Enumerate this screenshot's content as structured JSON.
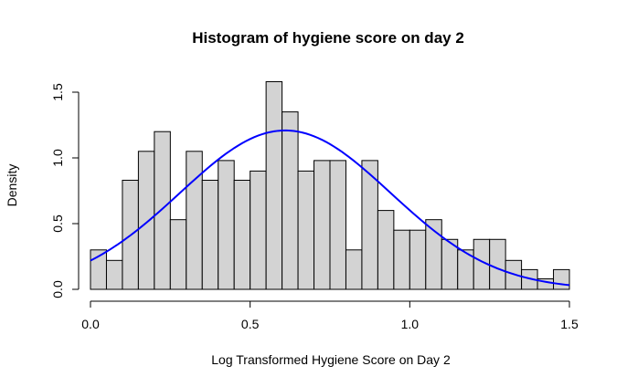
{
  "chart_data": {
    "type": "bar",
    "title": "Histogram of hygiene score on day 2",
    "xlabel": "Log Transformed Hygiene Score on Day 2",
    "ylabel": "Density",
    "xlim": [
      0,
      1.5
    ],
    "ylim": [
      0,
      1.6
    ],
    "bin_width": 0.05,
    "bin_edges": [
      0.0,
      0.05,
      0.1,
      0.15,
      0.2,
      0.25,
      0.3,
      0.35,
      0.4,
      0.45,
      0.5,
      0.55,
      0.6,
      0.65,
      0.7,
      0.75,
      0.8,
      0.85,
      0.9,
      0.95,
      1.0,
      1.05,
      1.1,
      1.15,
      1.2,
      1.25,
      1.3,
      1.35,
      1.4,
      1.45,
      1.5
    ],
    "densities": [
      0.3,
      0.22,
      0.83,
      1.05,
      1.2,
      0.53,
      1.05,
      0.83,
      0.98,
      0.83,
      0.9,
      1.58,
      1.35,
      0.9,
      0.98,
      0.98,
      0.3,
      0.98,
      0.6,
      0.45,
      0.45,
      0.53,
      0.38,
      0.3,
      0.38,
      0.38,
      0.22,
      0.15,
      0.08,
      0.15
    ],
    "x_ticks": [
      0,
      0.5,
      1,
      1.5
    ],
    "x_tick_labels": [
      "0.0",
      "0.5",
      "1.0",
      "1.5"
    ],
    "y_ticks": [
      0,
      0.5,
      1,
      1.5
    ],
    "y_tick_labels": [
      "0.0",
      "0.5",
      "1.0",
      "1.5"
    ],
    "grid": false,
    "bar_color": "#d3d3d3",
    "bar_border_color": "#000000",
    "density_curve": {
      "type": "normal",
      "mean": 0.61,
      "sd": 0.33,
      "x_range": [
        0.0,
        1.5
      ],
      "color": "#0000ff"
    }
  }
}
